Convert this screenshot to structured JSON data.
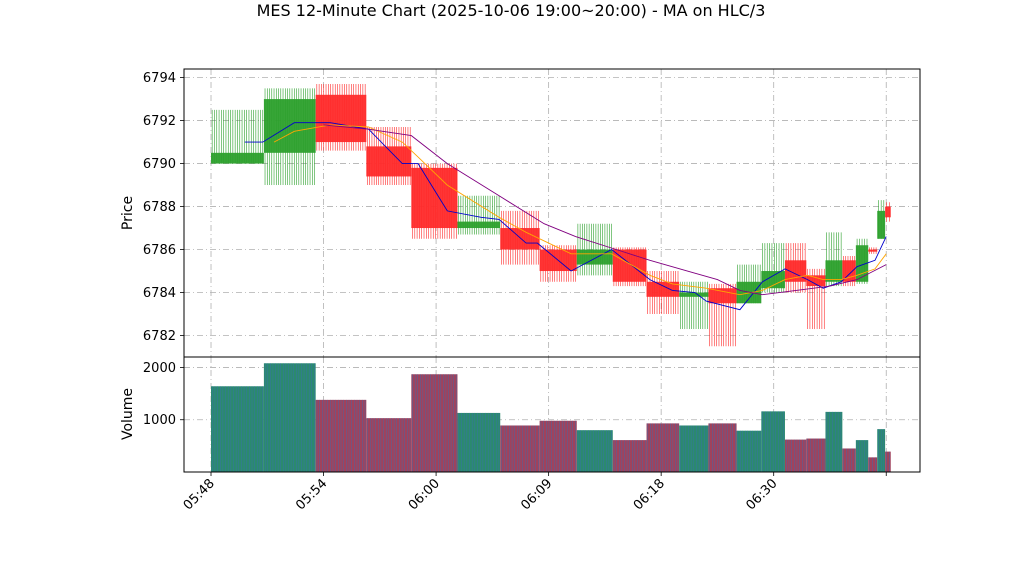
{
  "chart_data": {
    "type": "candlestick",
    "title": "MES 12-Minute Chart (2025-10-06 19:00~20:00) - MA on HLC/3",
    "price_panel": {
      "ylabel": "Price",
      "ylim": [
        6781,
        6794.4
      ],
      "yticks": [
        6782,
        6784,
        6786,
        6788,
        6790,
        6792,
        6794
      ],
      "grid": true
    },
    "volume_panel": {
      "ylabel": "Volume",
      "ylim": [
        0,
        2200
      ],
      "yticks": [
        1000,
        2000
      ],
      "yticklabels": [
        "1000",
        "2000"
      ],
      "grid": true
    },
    "x_range": [
      -1.2,
      31.5
    ],
    "xticks": [
      {
        "pos": 0,
        "label": "05:48"
      },
      {
        "pos": 5,
        "label": "05:54"
      },
      {
        "pos": 10,
        "label": "06:00"
      },
      {
        "pos": 15,
        "label": "06:09"
      },
      {
        "pos": 20,
        "label": "06:18"
      },
      {
        "pos": 25,
        "label": "06:30"
      },
      {
        "pos": 30,
        "label": ""
      }
    ],
    "colors": {
      "up": "#2ca02c",
      "down": "#ff2a2a",
      "ma_fast": "#0000cc",
      "ma_mid": "#ffa500",
      "ma_slow": "#800080",
      "grid": "#b0b0b0"
    },
    "candles": [
      {
        "t0": 0,
        "t1": 2.35,
        "open": 6790.0,
        "high": 6792.5,
        "low": 6790.0,
        "close": 6790.5,
        "volume": 1640
      },
      {
        "t0": 2.35,
        "t1": 4.65,
        "open": 6790.5,
        "high": 6793.5,
        "low": 6789.0,
        "close": 6793.0,
        "volume": 2080
      },
      {
        "t0": 4.65,
        "t1": 6.9,
        "open": 6793.2,
        "high": 6793.7,
        "low": 6790.6,
        "close": 6791.0,
        "volume": 1380
      },
      {
        "t0": 6.9,
        "t1": 8.9,
        "open": 6790.8,
        "high": 6791.7,
        "low": 6789.0,
        "close": 6789.4,
        "volume": 1030
      },
      {
        "t0": 8.9,
        "t1": 10.95,
        "open": 6789.8,
        "high": 6790.0,
        "low": 6786.5,
        "close": 6787.0,
        "volume": 1870
      },
      {
        "t0": 10.95,
        "t1": 12.85,
        "open": 6787.0,
        "high": 6788.5,
        "low": 6786.7,
        "close": 6787.3,
        "volume": 1130
      },
      {
        "t0": 12.85,
        "t1": 14.6,
        "open": 6787.0,
        "high": 6787.8,
        "low": 6785.3,
        "close": 6786.0,
        "volume": 890
      },
      {
        "t0": 14.6,
        "t1": 16.25,
        "open": 6786.0,
        "high": 6786.2,
        "low": 6784.5,
        "close": 6785.0,
        "volume": 980
      },
      {
        "t0": 16.25,
        "t1": 17.85,
        "open": 6785.3,
        "high": 6787.2,
        "low": 6784.8,
        "close": 6786.0,
        "volume": 800
      },
      {
        "t0": 17.85,
        "t1": 19.35,
        "open": 6786.0,
        "high": 6786.1,
        "low": 6784.3,
        "close": 6784.5,
        "volume": 610
      },
      {
        "t0": 19.35,
        "t1": 20.8,
        "open": 6784.5,
        "high": 6785.0,
        "low": 6783.0,
        "close": 6783.8,
        "volume": 930
      },
      {
        "t0": 20.8,
        "t1": 22.1,
        "open": 6783.8,
        "high": 6784.5,
        "low": 6782.3,
        "close": 6784.0,
        "volume": 890
      },
      {
        "t0": 22.1,
        "t1": 23.35,
        "open": 6784.2,
        "high": 6784.4,
        "low": 6781.5,
        "close": 6783.5,
        "volume": 930
      },
      {
        "t0": 23.35,
        "t1": 24.45,
        "open": 6783.5,
        "high": 6785.3,
        "low": 6783.5,
        "close": 6784.5,
        "volume": 790
      },
      {
        "t0": 24.45,
        "t1": 25.5,
        "open": 6784.2,
        "high": 6786.3,
        "low": 6784.0,
        "close": 6785.0,
        "volume": 1160
      },
      {
        "t0": 25.5,
        "t1": 26.45,
        "open": 6785.5,
        "high": 6786.3,
        "low": 6784.0,
        "close": 6784.5,
        "volume": 620
      },
      {
        "t0": 26.45,
        "t1": 27.3,
        "open": 6784.8,
        "high": 6785.1,
        "low": 6782.3,
        "close": 6784.3,
        "volume": 640
      },
      {
        "t0": 27.3,
        "t1": 28.05,
        "open": 6784.5,
        "high": 6786.8,
        "low": 6784.3,
        "close": 6785.5,
        "volume": 1150
      },
      {
        "t0": 28.05,
        "t1": 28.65,
        "open": 6785.5,
        "high": 6785.7,
        "low": 6784.3,
        "close": 6784.5,
        "volume": 450
      },
      {
        "t0": 28.65,
        "t1": 29.2,
        "open": 6784.5,
        "high": 6786.5,
        "low": 6784.4,
        "close": 6786.2,
        "volume": 610
      },
      {
        "t0": 29.2,
        "t1": 29.6,
        "open": 6786.0,
        "high": 6786.1,
        "low": 6785.8,
        "close": 6785.9,
        "volume": 280
      },
      {
        "t0": 29.6,
        "t1": 29.95,
        "open": 6786.5,
        "high": 6788.3,
        "low": 6786.5,
        "close": 6787.8,
        "volume": 820
      },
      {
        "t0": 29.95,
        "t1": 30.2,
        "open": 6788.0,
        "high": 6788.2,
        "low": 6787.3,
        "close": 6787.5,
        "volume": 390
      }
    ],
    "ma_lines": [
      {
        "color": "#0000cc",
        "points": [
          [
            1.5,
            6791.0
          ],
          [
            2.3,
            6791.0
          ],
          [
            3.7,
            6791.9
          ],
          [
            5.3,
            6791.9
          ],
          [
            7.0,
            6791.6
          ],
          [
            8.5,
            6790.0
          ],
          [
            9.2,
            6790.0
          ],
          [
            10.5,
            6787.8
          ],
          [
            12.0,
            6787.5
          ],
          [
            12.8,
            6787.4
          ],
          [
            14.0,
            6786.3
          ],
          [
            14.5,
            6786.3
          ],
          [
            16.0,
            6785.0
          ],
          [
            17.8,
            6786.0
          ],
          [
            19.5,
            6784.6
          ],
          [
            20.5,
            6784.1
          ],
          [
            21.5,
            6784.0
          ],
          [
            22.0,
            6783.6
          ],
          [
            23.5,
            6783.2
          ],
          [
            24.5,
            6784.5
          ],
          [
            25.5,
            6785.1
          ],
          [
            26.5,
            6784.6
          ],
          [
            27.2,
            6784.2
          ],
          [
            28.0,
            6784.5
          ],
          [
            28.7,
            6785.2
          ],
          [
            29.5,
            6785.5
          ],
          [
            30.0,
            6786.6
          ]
        ]
      },
      {
        "color": "#ffa500",
        "points": [
          [
            2.8,
            6791.0
          ],
          [
            3.7,
            6791.5
          ],
          [
            5.3,
            6791.8
          ],
          [
            7.0,
            6791.7
          ],
          [
            8.5,
            6791.0
          ],
          [
            9.2,
            6790.3
          ],
          [
            10.5,
            6789.0
          ],
          [
            12.8,
            6787.5
          ],
          [
            14.0,
            6786.8
          ],
          [
            16.0,
            6785.8
          ],
          [
            17.8,
            6785.8
          ],
          [
            19.5,
            6784.8
          ],
          [
            20.5,
            6784.4
          ],
          [
            22.0,
            6784.2
          ],
          [
            23.5,
            6783.9
          ],
          [
            24.5,
            6784.1
          ],
          [
            25.5,
            6784.6
          ],
          [
            26.5,
            6784.8
          ],
          [
            27.2,
            6784.6
          ],
          [
            28.0,
            6784.6
          ],
          [
            28.7,
            6784.8
          ],
          [
            29.5,
            6785.1
          ],
          [
            30.0,
            6785.8
          ]
        ]
      },
      {
        "color": "#800080",
        "points": [
          [
            5.0,
            6791.8
          ],
          [
            7.0,
            6791.6
          ],
          [
            8.9,
            6791.3
          ],
          [
            10.5,
            6790.0
          ],
          [
            12.8,
            6788.5
          ],
          [
            14.8,
            6787.2
          ],
          [
            16.2,
            6786.6
          ],
          [
            18.0,
            6786.0
          ],
          [
            19.5,
            6785.5
          ],
          [
            21.5,
            6784.9
          ],
          [
            22.5,
            6784.6
          ],
          [
            23.5,
            6784.1
          ],
          [
            24.5,
            6783.9
          ],
          [
            26.0,
            6784.1
          ],
          [
            27.5,
            6784.3
          ],
          [
            28.7,
            6784.6
          ],
          [
            30.0,
            6785.3
          ]
        ]
      }
    ]
  }
}
